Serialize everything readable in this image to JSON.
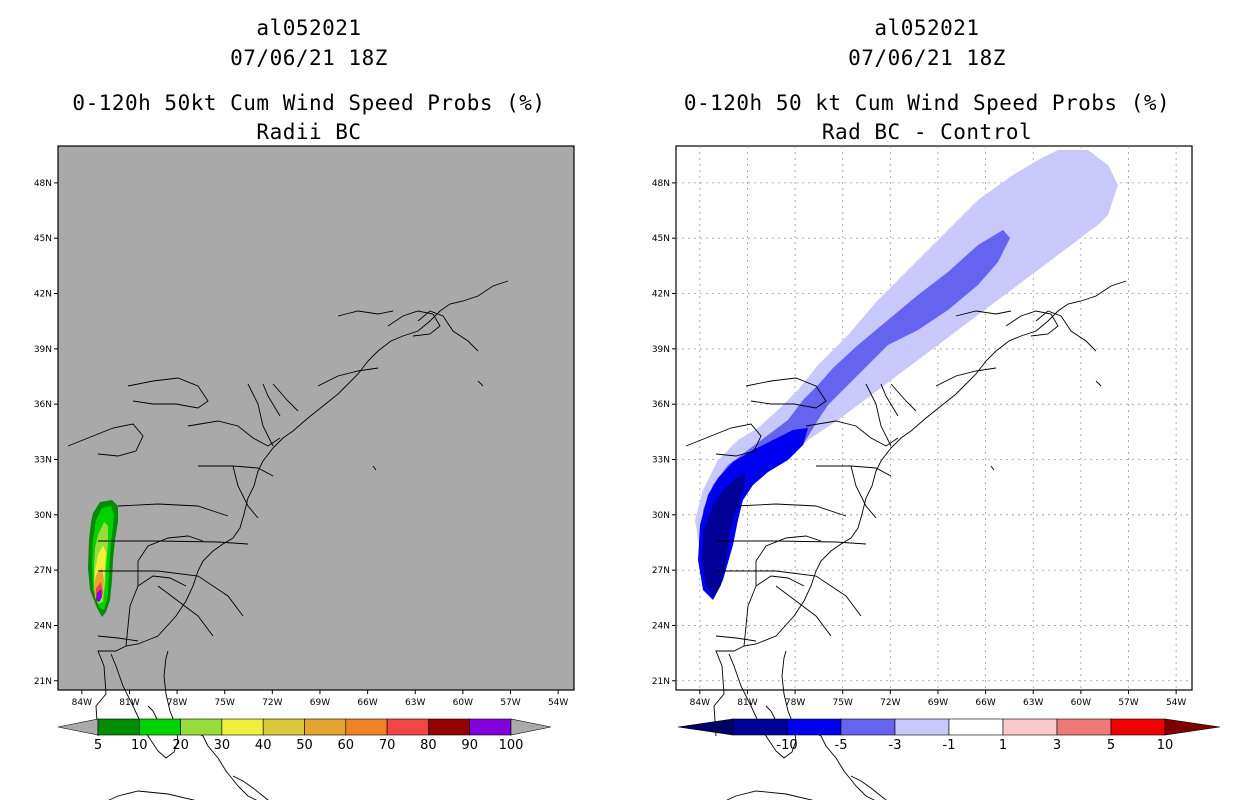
{
  "left": {
    "storm_id": "al052021",
    "cycle": "07/06/21 18Z",
    "title": "0-120h 50kt Cum Wind Speed Probs (%)",
    "subtitle": "Radii BC",
    "colors": {
      "background": "#a9a9a9",
      "coast": "#000000"
    },
    "colorbar": {
      "colors": [
        "#008c00",
        "#00d200",
        "#96dc3c",
        "#f0f03c",
        "#dcc83c",
        "#e6a532",
        "#f08228",
        "#f04646",
        "#960000",
        "#8200dc"
      ],
      "end_color": "#aaaaaa",
      "labels": [
        "5",
        "10",
        "20",
        "30",
        "40",
        "50",
        "60",
        "70",
        "80",
        "90",
        "100"
      ]
    }
  },
  "right": {
    "storm_id": "al052021",
    "cycle": "07/06/21 18Z",
    "title": "0-120h 50 kt Cum Wind Speed Probs (%)",
    "subtitle": "Rad BC - Control",
    "colors": {
      "background": "#ffffff",
      "coast": "#000000"
    },
    "colorbar": {
      "colors": [
        "#000096",
        "#0000f0",
        "#6464f0",
        "#c8c8fa",
        "#ffffff",
        "#fac8c8",
        "#f07878",
        "#f00000"
      ],
      "low_color": "#000064",
      "high_color": "#7d0000",
      "labels": [
        "-10",
        "-5",
        "-3",
        "-1",
        "1",
        "3",
        "5",
        "10"
      ]
    }
  },
  "axes": {
    "lat_labels": [
      "48N",
      "45N",
      "42N",
      "39N",
      "36N",
      "33N",
      "30N",
      "27N",
      "24N",
      "21N"
    ],
    "lat_values": [
      48,
      45,
      42,
      39,
      36,
      33,
      30,
      27,
      24,
      21
    ],
    "lon_labels": [
      "84W",
      "81W",
      "78W",
      "75W",
      "72W",
      "69W",
      "66W",
      "63W",
      "60W",
      "57W",
      "54W"
    ],
    "lon_values": [
      -84,
      -81,
      -78,
      -75,
      -72,
      -69,
      -66,
      -63,
      -60,
      -57,
      -54
    ]
  }
}
